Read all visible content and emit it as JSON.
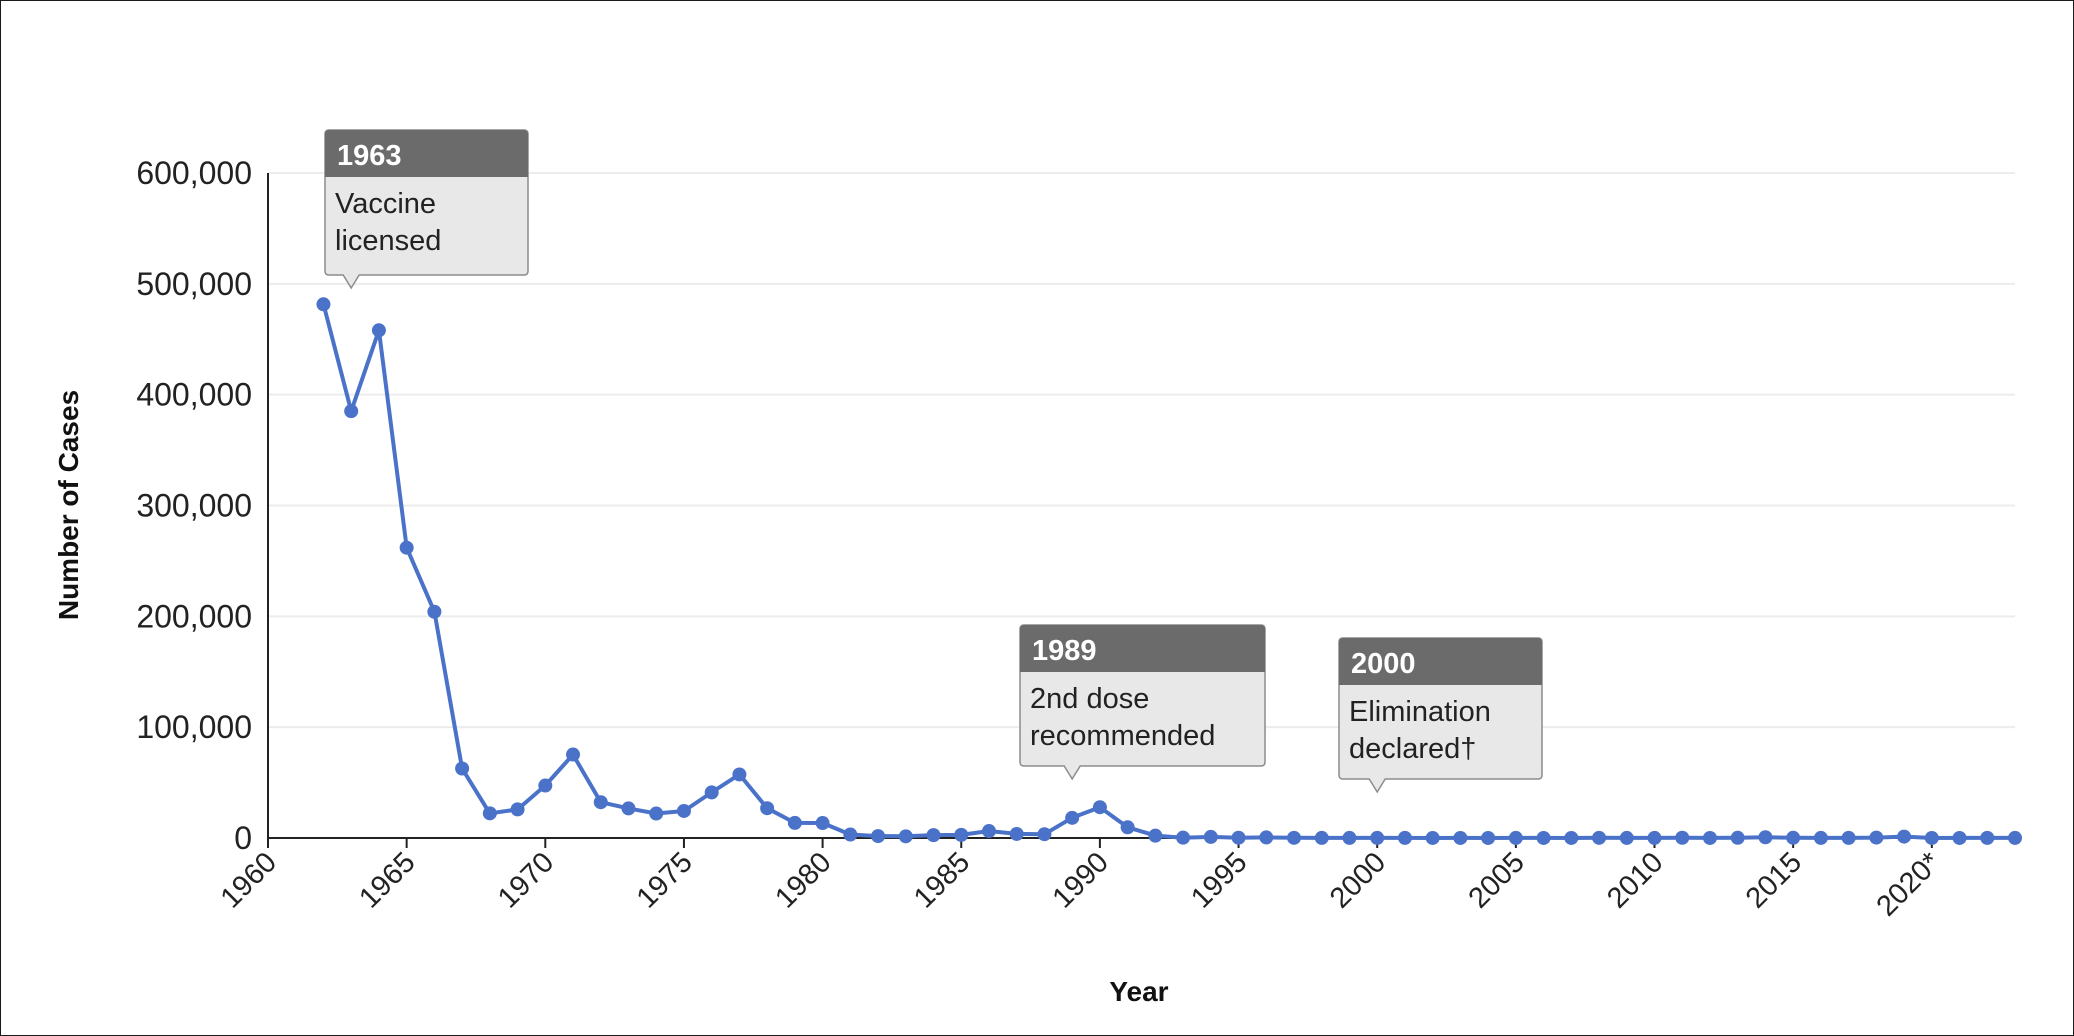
{
  "chart_data": {
    "type": "line",
    "xlabel": "Year",
    "ylabel": "Number of Cases",
    "xlim": [
      1960,
      2023
    ],
    "ylim": [
      0,
      600000
    ],
    "y_ticks": [
      0,
      100000,
      200000,
      300000,
      400000,
      500000,
      600000
    ],
    "y_tick_labels": [
      "0",
      "100,000",
      "200,000",
      "300,000",
      "400,000",
      "500,000",
      "600,000"
    ],
    "x_ticks": [
      1960,
      1965,
      1970,
      1975,
      1980,
      1985,
      1990,
      1995,
      2000,
      2005,
      2010,
      2015,
      2020
    ],
    "x_tick_labels": [
      "1960",
      "1965",
      "1970",
      "1975",
      "1980",
      "1985",
      "1990",
      "1995",
      "2000",
      "2005",
      "2010",
      "2015",
      "2020*"
    ],
    "grid": true,
    "color": "#4a72c9",
    "series": [
      {
        "x": [
          1962,
          1963,
          1964,
          1965,
          1966,
          1967,
          1968,
          1969,
          1970,
          1971,
          1972,
          1973,
          1974,
          1975,
          1976,
          1977,
          1978,
          1979,
          1980,
          1981,
          1982,
          1983,
          1984,
          1985,
          1986,
          1987,
          1988,
          1989,
          1990,
          1991,
          1992,
          1993,
          1994,
          1995,
          1996,
          1997,
          1998,
          1999,
          2000,
          2001,
          2002,
          2003,
          2004,
          2005,
          2006,
          2007,
          2008,
          2009,
          2010,
          2011,
          2012,
          2013,
          2014,
          2015,
          2016,
          2017,
          2018,
          2019,
          2020,
          2021,
          2022,
          2023
        ],
        "values": [
          481530,
          385156,
          458083,
          261904,
          204136,
          62705,
          22231,
          25826,
          47351,
          75290,
          32275,
          26690,
          22094,
          24374,
          41126,
          57345,
          26871,
          13597,
          13506,
          3124,
          1714,
          1497,
          2587,
          2822,
          6282,
          3655,
          3396,
          18193,
          27786,
          9643,
          2126,
          312,
          963,
          281,
          508,
          138,
          100,
          100,
          86,
          116,
          44,
          56,
          37,
          66,
          55,
          43,
          140,
          71,
          63,
          220,
          55,
          187,
          667,
          188,
          86,
          120,
          375,
          1282,
          13,
          49,
          121,
          59
        ]
      }
    ],
    "annotations": [
      {
        "year": 1963,
        "year_label": "1963",
        "lines": [
          "Vaccine",
          "licensed"
        ]
      },
      {
        "year": 1989,
        "year_label": "1989",
        "lines": [
          "2nd dose",
          "recommended"
        ]
      },
      {
        "year": 2000,
        "year_label": "2000",
        "lines": [
          "Elimination",
          "declared†"
        ]
      }
    ]
  }
}
